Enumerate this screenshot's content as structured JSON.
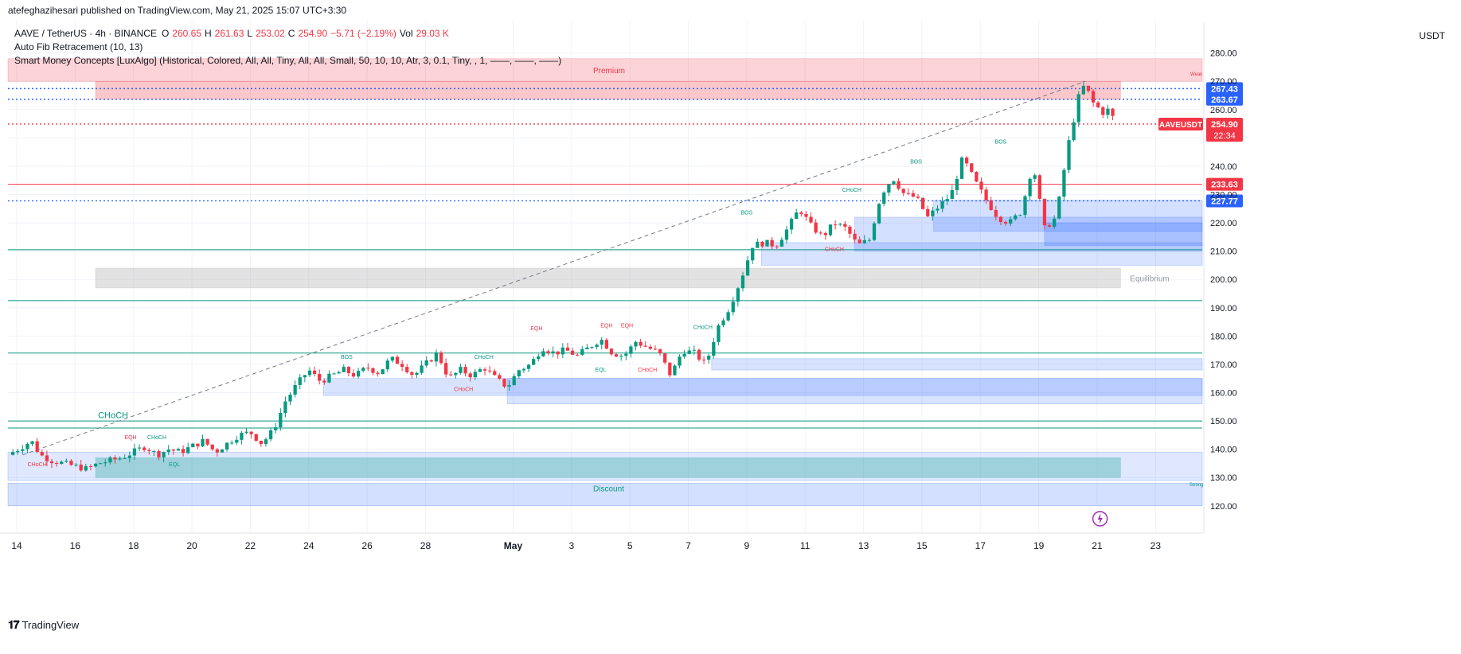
{
  "header": {
    "text": "atefeghazihesari published on TradingView.com, May 21, 2025 15:07 UTC+3:30"
  },
  "legend": {
    "symbol": "AAVE / TetherUS · 4h · BINANCE",
    "o_label": "O",
    "o": "260.65",
    "h_label": "H",
    "h": "261.63",
    "l_label": "L",
    "l": "253.02",
    "c_label": "C",
    "c": "254.90",
    "change": "−5.71 (−2.19%)",
    "vol_label": "Vol",
    "vol": "29.03 K",
    "indicator1": "Auto Fib Retracement (10, 13)",
    "indicator2": "Smart Money Concepts [LuxAlgo] (Historical, Colored, All, All, Tiny, All, All, Small, 50, 10, 10, Atr, 3, 0.1, Tiny, , 1, ——, ——, ——)"
  },
  "axis": {
    "unit": "USDT"
  },
  "footer": {
    "brand": "TradingView"
  },
  "colors": {
    "up": "#089981",
    "down": "#f23645",
    "blue_zone": "#2962ff",
    "grid": "#f0f3fa"
  },
  "chart_data": {
    "type": "candlestick",
    "symbol": "AAVEUSDT",
    "timeframe": "4h",
    "ylim": [
      116,
      283
    ],
    "y_ticks": [
      120,
      130,
      140,
      150,
      160,
      170,
      180,
      190,
      200,
      210,
      220,
      230,
      240,
      250,
      260,
      270,
      280
    ],
    "x_ticks": [
      {
        "day": 0,
        "label": "14"
      },
      {
        "day": 2,
        "label": "16"
      },
      {
        "day": 4,
        "label": "18"
      },
      {
        "day": 6,
        "label": "20"
      },
      {
        "day": 8,
        "label": "22"
      },
      {
        "day": 10,
        "label": "24"
      },
      {
        "day": 12,
        "label": "26"
      },
      {
        "day": 14,
        "label": "28"
      },
      {
        "day": 17,
        "label": "May"
      },
      {
        "day": 19,
        "label": "3"
      },
      {
        "day": 21,
        "label": "5"
      },
      {
        "day": 23,
        "label": "7"
      },
      {
        "day": 25,
        "label": "9"
      },
      {
        "day": 27,
        "label": "11"
      },
      {
        "day": 29,
        "label": "13"
      },
      {
        "day": 31,
        "label": "15"
      },
      {
        "day": 33,
        "label": "17"
      },
      {
        "day": 35,
        "label": "19"
      },
      {
        "day": 37,
        "label": "21"
      },
      {
        "day": 39,
        "label": "23"
      }
    ],
    "xlim": [
      -0.3,
      40.6
    ],
    "price_path": [
      [
        -0.3,
        138
      ],
      [
        0.2,
        141
      ],
      [
        0.5,
        143
      ],
      [
        0.8,
        138
      ],
      [
        1.2,
        136
      ],
      [
        1.6,
        135
      ],
      [
        2.0,
        134
      ],
      [
        2.4,
        133
      ],
      [
        2.8,
        135
      ],
      [
        3.2,
        136
      ],
      [
        3.6,
        137
      ],
      [
        4.0,
        139
      ],
      [
        4.4,
        141
      ],
      [
        4.8,
        138
      ],
      [
        5.2,
        140
      ],
      [
        5.6,
        139
      ],
      [
        6.0,
        141
      ],
      [
        6.4,
        143
      ],
      [
        6.8,
        139
      ],
      [
        7.2,
        142
      ],
      [
        7.6,
        145
      ],
      [
        8.0,
        146
      ],
      [
        8.4,
        142
      ],
      [
        8.8,
        147
      ],
      [
        9.2,
        157
      ],
      [
        9.6,
        163
      ],
      [
        10.0,
        168
      ],
      [
        10.4,
        164
      ],
      [
        10.8,
        166
      ],
      [
        11.2,
        168
      ],
      [
        11.6,
        166
      ],
      [
        12.0,
        169
      ],
      [
        12.4,
        167
      ],
      [
        12.8,
        172
      ],
      [
        13.2,
        170
      ],
      [
        13.6,
        166
      ],
      [
        14.0,
        170
      ],
      [
        14.4,
        174
      ],
      [
        14.8,
        165
      ],
      [
        15.2,
        168
      ],
      [
        15.6,
        166
      ],
      [
        16.0,
        169
      ],
      [
        16.4,
        165
      ],
      [
        16.8,
        162
      ],
      [
        17.2,
        168
      ],
      [
        17.6,
        170
      ],
      [
        18.0,
        176
      ],
      [
        18.4,
        174
      ],
      [
        18.8,
        175
      ],
      [
        19.2,
        173
      ],
      [
        19.6,
        176
      ],
      [
        20.0,
        179
      ],
      [
        20.4,
        174
      ],
      [
        20.8,
        173
      ],
      [
        21.2,
        178
      ],
      [
        21.6,
        176
      ],
      [
        22.0,
        174
      ],
      [
        22.4,
        166
      ],
      [
        22.8,
        175
      ],
      [
        23.2,
        174
      ],
      [
        23.6,
        170
      ],
      [
        24.0,
        183
      ],
      [
        24.4,
        190
      ],
      [
        24.8,
        200
      ],
      [
        25.2,
        212
      ],
      [
        25.6,
        213
      ],
      [
        26.0,
        212
      ],
      [
        26.4,
        218
      ],
      [
        26.8,
        225
      ],
      [
        27.2,
        219
      ],
      [
        27.6,
        215
      ],
      [
        28.0,
        220
      ],
      [
        28.4,
        218
      ],
      [
        28.8,
        212
      ],
      [
        29.2,
        214
      ],
      [
        29.6,
        230
      ],
      [
        30.0,
        236
      ],
      [
        30.4,
        230
      ],
      [
        30.8,
        229
      ],
      [
        31.2,
        222
      ],
      [
        31.6,
        226
      ],
      [
        32.0,
        230
      ],
      [
        32.4,
        243
      ],
      [
        32.8,
        235
      ],
      [
        33.2,
        228
      ],
      [
        33.6,
        222
      ],
      [
        34.0,
        220
      ],
      [
        34.4,
        224
      ],
      [
        34.8,
        241
      ],
      [
        35.2,
        218
      ],
      [
        35.6,
        222
      ],
      [
        36.0,
        247
      ],
      [
        36.4,
        266
      ],
      [
        36.6,
        269
      ],
      [
        36.8,
        263
      ],
      [
        37.2,
        259
      ],
      [
        37.4,
        260
      ],
      [
        37.6,
        256
      ]
    ],
    "horizontal_levels": [
      {
        "price": 267.43,
        "label": "267.43",
        "style": "dotted",
        "color": "#2962ff"
      },
      {
        "price": 263.67,
        "label": "263.67",
        "style": "dotted",
        "color": "#2962ff"
      },
      {
        "price": 254.9,
        "label": "254.90",
        "style": "dotted",
        "color": "#f23645"
      },
      {
        "price": 233.63,
        "label": "233.63",
        "style": "solid",
        "color": "#f23645"
      },
      {
        "price": 227.77,
        "label": "227.77",
        "style": "dotted",
        "color": "#2962ff"
      },
      {
        "price": 210.5,
        "label": "",
        "style": "solid",
        "color": "#089981"
      },
      {
        "price": 192.5,
        "label": "",
        "style": "solid",
        "color": "#089981"
      },
      {
        "price": 174,
        "label": "",
        "style": "solid",
        "color": "#089981"
      },
      {
        "price": 150,
        "label": "",
        "style": "solid",
        "color": "#089981"
      },
      {
        "price": 147.5,
        "label": "",
        "style": "solid",
        "color": "#089981"
      }
    ],
    "last_price": {
      "symbol_label": "AAVEUSDT",
      "price": "254.90",
      "countdown": "22:34"
    },
    "zones": [
      {
        "name": "Premium",
        "x0": -0.3,
        "x1": 40.6,
        "y0": 270,
        "y1": 278,
        "color": "#f23645",
        "opacity": 0.22
      },
      {
        "name": "",
        "x0": 2.7,
        "x1": 37.8,
        "y0": 263.67,
        "y1": 270,
        "color": "#f23645",
        "opacity": 0.28
      },
      {
        "name": "Equilibrium",
        "x0": 2.7,
        "x1": 37.8,
        "y0": 197,
        "y1": 204,
        "color": "#9e9e9e",
        "opacity": 0.3
      },
      {
        "name": "Discount",
        "x0": -0.3,
        "x1": 40.6,
        "y0": 120,
        "y1": 128,
        "color": "#2962ff",
        "opacity": 0.2
      },
      {
        "name": "",
        "x0": -0.3,
        "x1": 40.6,
        "y0": 129,
        "y1": 139,
        "color": "#2962ff",
        "opacity": 0.15
      },
      {
        "name": "",
        "x0": 2.7,
        "x1": 37.8,
        "y0": 130,
        "y1": 137,
        "color": "#26a69a",
        "opacity": 0.35
      },
      {
        "name": "",
        "x0": 10.5,
        "x1": 40.6,
        "y0": 159,
        "y1": 165,
        "color": "#2962ff",
        "opacity": 0.18
      },
      {
        "name": "",
        "x0": 16.8,
        "x1": 40.6,
        "y0": 156,
        "y1": 165,
        "color": "#2962ff",
        "opacity": 0.18
      },
      {
        "name": "",
        "x0": 23.8,
        "x1": 40.6,
        "y0": 168,
        "y1": 172,
        "color": "#2962ff",
        "opacity": 0.18
      },
      {
        "name": "",
        "x0": 25.5,
        "x1": 40.6,
        "y0": 205,
        "y1": 213,
        "color": "#2962ff",
        "opacity": 0.18
      },
      {
        "name": "",
        "x0": 28.7,
        "x1": 40.6,
        "y0": 210,
        "y1": 222,
        "color": "#2962ff",
        "opacity": 0.2
      },
      {
        "name": "",
        "x0": 31.4,
        "x1": 40.6,
        "y0": 217,
        "y1": 228,
        "color": "#2962ff",
        "opacity": 0.2
      },
      {
        "name": "",
        "x0": 35.2,
        "x1": 40.6,
        "y0": 212,
        "y1": 220,
        "color": "#2962ff",
        "opacity": 0.25
      }
    ],
    "structure_labels": [
      {
        "text": "CHoCH",
        "day": 3.3,
        "price": 151,
        "color": "#089981",
        "size": "large"
      },
      {
        "text": "CHoCH",
        "day": 0.7,
        "price": 134,
        "color": "#f23645",
        "size": "small"
      },
      {
        "text": "EQH",
        "day": 3.9,
        "price": 143.5,
        "color": "#f23645",
        "size": "small"
      },
      {
        "text": "CHoCH",
        "day": 4.8,
        "price": 143.5,
        "color": "#089981",
        "size": "small"
      },
      {
        "text": "EQL",
        "day": 5.4,
        "price": 134,
        "color": "#089981",
        "size": "small"
      },
      {
        "text": "BOS",
        "day": 11.3,
        "price": 172,
        "color": "#089981",
        "size": "small"
      },
      {
        "text": "CHoCH",
        "day": 16.0,
        "price": 172,
        "color": "#089981",
        "size": "small"
      },
      {
        "text": "CHoCH",
        "day": 15.3,
        "price": 160.5,
        "color": "#f23645",
        "size": "small"
      },
      {
        "text": "EQH",
        "day": 17.8,
        "price": 182,
        "color": "#f23645",
        "size": "small"
      },
      {
        "text": "EQH",
        "day": 20.2,
        "price": 183,
        "color": "#f23645",
        "size": "small"
      },
      {
        "text": "EQH",
        "day": 20.9,
        "price": 183,
        "color": "#f23645",
        "size": "small"
      },
      {
        "text": "EQL",
        "day": 20.0,
        "price": 167.5,
        "color": "#089981",
        "size": "small"
      },
      {
        "text": "CHoCH",
        "day": 21.6,
        "price": 167.5,
        "color": "#f23645",
        "size": "small"
      },
      {
        "text": "CHoCH",
        "day": 23.5,
        "price": 182.5,
        "color": "#089981",
        "size": "small"
      },
      {
        "text": "BOS",
        "day": 25.0,
        "price": 223,
        "color": "#089981",
        "size": "small"
      },
      {
        "text": "CHoCH",
        "day": 28.0,
        "price": 210,
        "color": "#f23645",
        "size": "small"
      },
      {
        "text": "CHoCH",
        "day": 28.6,
        "price": 231,
        "color": "#089981",
        "size": "small"
      },
      {
        "text": "BOS",
        "day": 30.8,
        "price": 241,
        "color": "#089981",
        "size": "small"
      },
      {
        "text": "BOS",
        "day": 33.7,
        "price": 248,
        "color": "#089981",
        "size": "small"
      },
      {
        "text": "Weak",
        "day": 40.4,
        "price": 272,
        "color": "#f23645",
        "size": "tiny"
      },
      {
        "text": "Strong",
        "day": 40.4,
        "price": 127,
        "color": "#089981",
        "size": "tiny"
      }
    ],
    "fib_line": {
      "from": {
        "day": 0.2,
        "price": 138
      },
      "to": {
        "day": 36.6,
        "price": 270
      }
    }
  }
}
